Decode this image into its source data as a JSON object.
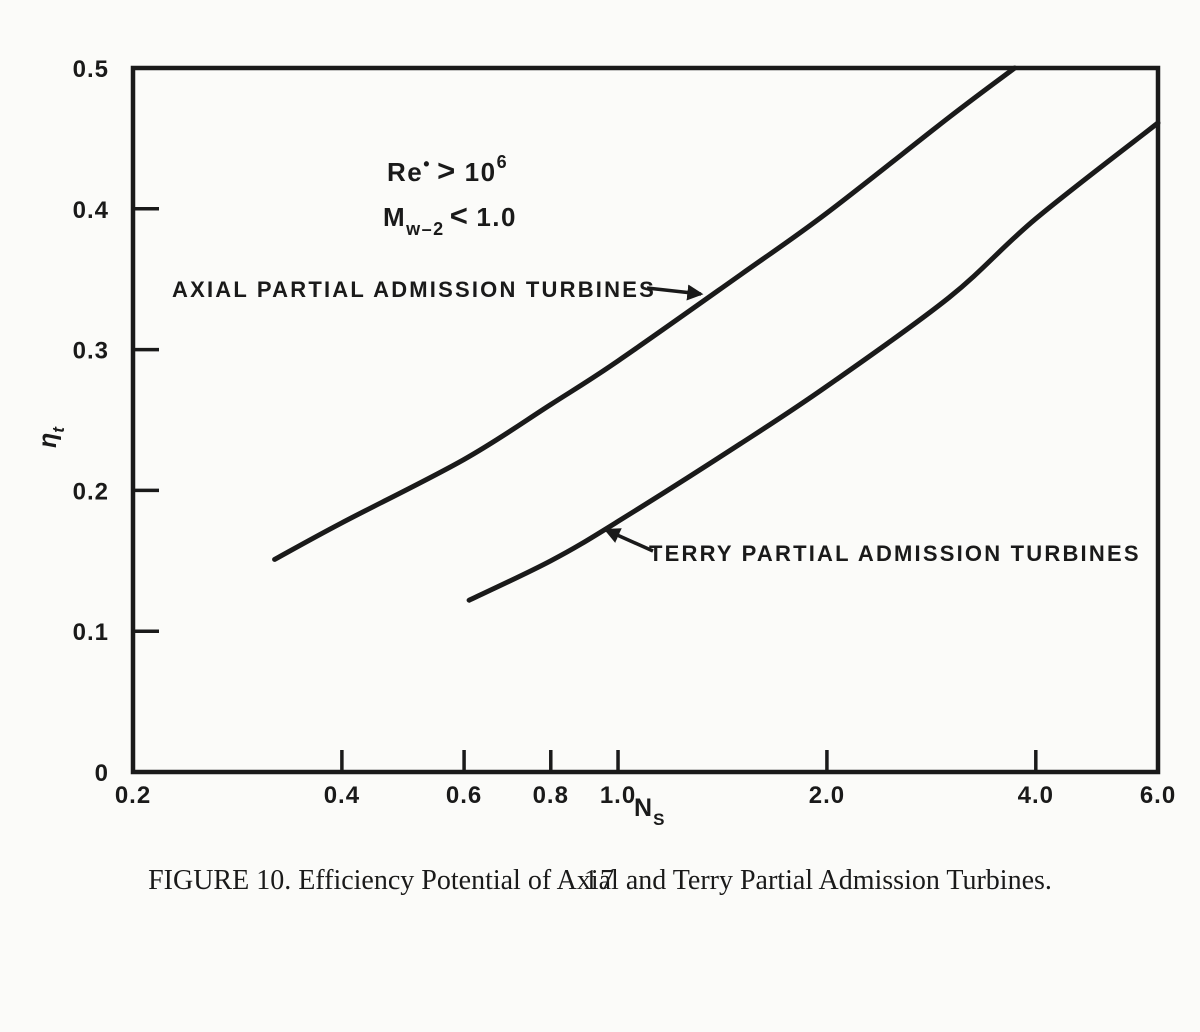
{
  "page": {
    "caption": "FIGURE 10.  Efficiency Potential of Axial and Terry Partial Admission Turbines.",
    "page_number": "17"
  },
  "colors": {
    "ink": "#1a1a1a",
    "paper": "#fbfbf9"
  },
  "chart_data": {
    "type": "line",
    "title": "",
    "x_scale": "log",
    "grid": false,
    "legend_position": "none",
    "xlabel": {
      "base": "N",
      "sub": "S"
    },
    "ylabel": {
      "base": "η",
      "sub": "t"
    },
    "xlim": [
      0.2,
      6.0
    ],
    "ylim": [
      0,
      0.5
    ],
    "x_ticks": [
      {
        "v": 0.2,
        "label": "0.2",
        "mark": false
      },
      {
        "v": 0.4,
        "label": "0.4",
        "mark": true
      },
      {
        "v": 0.6,
        "label": "0.6",
        "mark": true
      },
      {
        "v": 0.8,
        "label": "0.8",
        "mark": true
      },
      {
        "v": 1.0,
        "label": "1.0",
        "mark": true
      },
      {
        "v": 2.0,
        "label": "2.0",
        "mark": true
      },
      {
        "v": 4.0,
        "label": "4.0",
        "mark": true
      },
      {
        "v": 6.0,
        "label": "6.0",
        "mark": false
      }
    ],
    "y_ticks": [
      {
        "v": 0.0,
        "label": "0",
        "mark": false
      },
      {
        "v": 0.1,
        "label": "0.1",
        "mark": true
      },
      {
        "v": 0.2,
        "label": "0.2",
        "mark": true
      },
      {
        "v": 0.3,
        "label": "0.3",
        "mark": true
      },
      {
        "v": 0.4,
        "label": "0.4",
        "mark": true
      },
      {
        "v": 0.5,
        "label": "0.5",
        "mark": false
      }
    ],
    "annotations": {
      "reynolds": {
        "lhs": "Re",
        "lhs_sup": "•",
        "op": ">",
        "rhs": "10",
        "rhs_sup": "6"
      },
      "mach": {
        "lhs": "M",
        "lhs_sub": "w–2",
        "op": "<",
        "rhs": "1.0"
      }
    },
    "series": [
      {
        "name": "axial",
        "label": "AXIAL PARTIAL ADMISSION TURBINES",
        "points": [
          [
            0.32,
            0.151
          ],
          [
            0.4,
            0.177
          ],
          [
            0.6,
            0.222
          ],
          [
            0.8,
            0.261
          ],
          [
            1.0,
            0.292
          ],
          [
            1.5,
            0.353
          ],
          [
            2.0,
            0.397
          ],
          [
            3.0,
            0.465
          ],
          [
            3.73,
            0.5
          ]
        ]
      },
      {
        "name": "terry",
        "label": "TERRY PARTIAL ADMISSION TURBINES",
        "points": [
          [
            0.61,
            0.122
          ],
          [
            0.8,
            0.15
          ],
          [
            1.0,
            0.178
          ],
          [
            1.5,
            0.233
          ],
          [
            2.0,
            0.274
          ],
          [
            3.0,
            0.337
          ],
          [
            4.0,
            0.393
          ],
          [
            6.0,
            0.461
          ]
        ]
      }
    ]
  }
}
